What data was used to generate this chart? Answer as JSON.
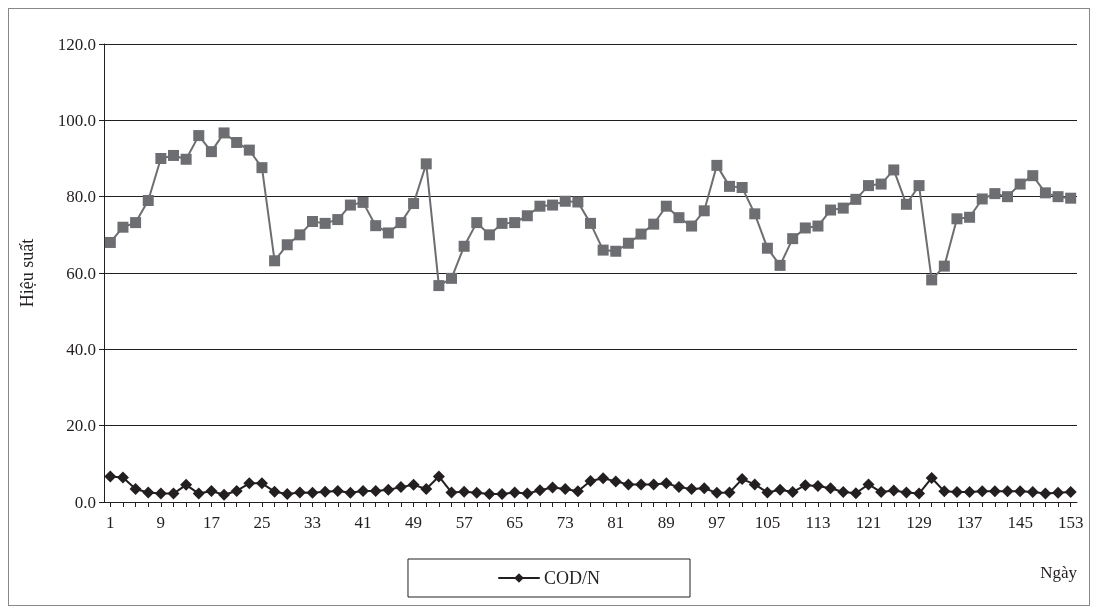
{
  "chart_data": {
    "type": "line",
    "xlabel": "Ngày",
    "ylabel": "Hiệu suất",
    "categories": [
      "1",
      null,
      null,
      null,
      "9",
      null,
      null,
      null,
      "17",
      null,
      null,
      null,
      "25",
      null,
      null,
      null,
      "33",
      null,
      null,
      null,
      "41",
      null,
      null,
      null,
      "49",
      null,
      null,
      null,
      "57",
      null,
      null,
      null,
      "65",
      null,
      null,
      null,
      "73",
      null,
      null,
      null,
      "81",
      null,
      null,
      null,
      "89",
      null,
      null,
      null,
      "97",
      null,
      null,
      null,
      "105",
      null,
      null,
      null,
      "113",
      null,
      null,
      null,
      "121",
      null,
      null,
      null,
      "129",
      null,
      null,
      null,
      "137",
      null,
      null,
      null,
      "145",
      null,
      null,
      null,
      "153"
    ],
    "series": [
      {
        "color": "#6d6e71",
        "marker": "square",
        "values": [
          68,
          72,
          73.2,
          79,
          90,
          90.8,
          89.8,
          96,
          91.8,
          96.7,
          94.2,
          92.2,
          87.6,
          63.2,
          67.4,
          70,
          73.5,
          73,
          74,
          77.8,
          78.5,
          72.4,
          70.5,
          73.2,
          78.2,
          88.6,
          56.7,
          58.6,
          67,
          73.2,
          70,
          73,
          73.2,
          75,
          77.5,
          77.8,
          78.8,
          78.6,
          73,
          66,
          65.7,
          67.8,
          70.2,
          72.8,
          77.5,
          74.5,
          72.3,
          76.3,
          88.2,
          82.7,
          82.4,
          75.5,
          66.5,
          62,
          69,
          71.8,
          72.3,
          76.5,
          77,
          79.3,
          82.9,
          83.3,
          87,
          78,
          82.9,
          58.2,
          61.8,
          74.2,
          74.6,
          79.4,
          80.8,
          80,
          83.3,
          85.5,
          81,
          80,
          79.6
        ]
      },
      {
        "name": "COD/N",
        "color": "#231f20",
        "marker": "diamond",
        "values": [
          6.7,
          6.4,
          3.4,
          2.5,
          2.2,
          2.2,
          4.5,
          2.2,
          2.9,
          1.9,
          2.9,
          4.9,
          4.9,
          2.7,
          2.1,
          2.5,
          2.4,
          2.7,
          2.9,
          2.4,
          2.9,
          2.9,
          3.2,
          3.9,
          4.5,
          3.4,
          6.7,
          2.5,
          2.7,
          2.4,
          2.1,
          2.1,
          2.5,
          2.2,
          3.1,
          3.8,
          3.4,
          2.8,
          5.5,
          6.2,
          5.4,
          4.6,
          4.6,
          4.6,
          4.9,
          3.9,
          3.4,
          3.6,
          2.4,
          2.5,
          6.0,
          4.6,
          2.5,
          3.2,
          2.6,
          4.4,
          4.2,
          3.6,
          2.6,
          2.3,
          4.6,
          2.6,
          3.0,
          2.5,
          2.2,
          6.3,
          2.8,
          2.6,
          2.6,
          2.8,
          2.8,
          2.8,
          2.8,
          2.6,
          2.2,
          2.4,
          2.6
        ]
      }
    ],
    "ylim": [
      0,
      120
    ],
    "yticks": [
      {
        "value": 0,
        "label": "0.0"
      },
      {
        "value": 20,
        "label": "20.0"
      },
      {
        "value": 40,
        "label": "40.0"
      },
      {
        "value": 60,
        "label": "60.0"
      },
      {
        "value": 80,
        "label": "80.0"
      },
      {
        "value": 100,
        "label": "100.0"
      },
      {
        "value": 120,
        "label": "120.0"
      }
    ],
    "grid": "y",
    "legend": "bottom",
    "line_style": "solid"
  }
}
